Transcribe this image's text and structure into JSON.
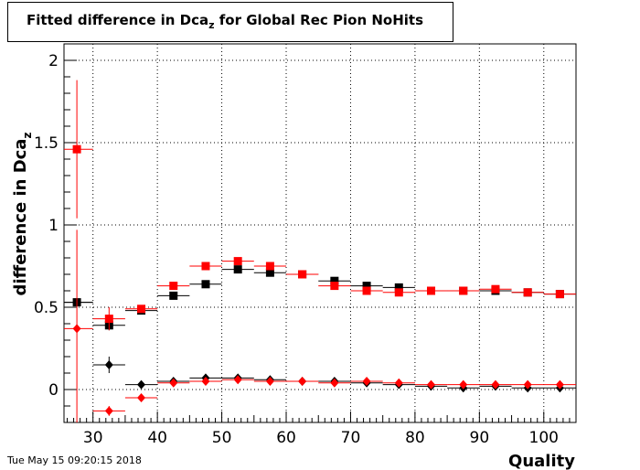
{
  "title": {
    "main": "Fitted difference in Dca",
    "sub": "z",
    "rest": " for Global Rec Pion NoHits"
  },
  "ylabel": {
    "main": "difference in Dca",
    "sub": "z"
  },
  "xlabel": "Quality",
  "timestamp": "Tue May 15 09:20:15 2018",
  "chart_data": {
    "type": "scatter",
    "title": "Fitted difference in Dca_z for Global Rec Pion NoHits",
    "xlabel": "Quality",
    "ylabel": "difference in Dca_z",
    "xlim": [
      25.5,
      105
    ],
    "ylim": [
      -0.2,
      2.1
    ],
    "x_ticks": [
      30,
      40,
      50,
      60,
      70,
      80,
      90,
      100
    ],
    "x_tick_labels": [
      "30",
      "40",
      "50",
      "60",
      "70",
      "80",
      "90",
      "100"
    ],
    "y_ticks": [
      0,
      0.5,
      1,
      1.5,
      2
    ],
    "y_tick_labels": [
      "0",
      "0.5",
      "1",
      "1.5",
      "2"
    ],
    "grid": true,
    "bin_half_width": 2.5,
    "series": [
      {
        "marker": "square",
        "color": "#000000",
        "points": [
          {
            "x": 27.5,
            "y": 0.53,
            "yerr": 0.02
          },
          {
            "x": 32.5,
            "y": 0.39,
            "yerr": 0.03
          },
          {
            "x": 37.5,
            "y": 0.48,
            "yerr": 0.02
          },
          {
            "x": 42.5,
            "y": 0.57,
            "yerr": 0.02
          },
          {
            "x": 47.5,
            "y": 0.64,
            "yerr": 0.02
          },
          {
            "x": 52.5,
            "y": 0.73,
            "yerr": 0.01
          },
          {
            "x": 57.5,
            "y": 0.71,
            "yerr": 0.01
          },
          {
            "x": 62.5,
            "y": 0.7,
            "yerr": 0.01
          },
          {
            "x": 67.5,
            "y": 0.66,
            "yerr": 0.01
          },
          {
            "x": 72.5,
            "y": 0.63,
            "yerr": 0.01
          },
          {
            "x": 77.5,
            "y": 0.62,
            "yerr": 0.01
          },
          {
            "x": 82.5,
            "y": 0.6,
            "yerr": 0.01
          },
          {
            "x": 87.5,
            "y": 0.6,
            "yerr": 0.01
          },
          {
            "x": 92.5,
            "y": 0.6,
            "yerr": 0.01
          },
          {
            "x": 97.5,
            "y": 0.59,
            "yerr": 0.01
          },
          {
            "x": 102.5,
            "y": 0.58,
            "yerr": 0.01
          }
        ]
      },
      {
        "marker": "diamond",
        "color": "#000000",
        "points": [
          {
            "x": 27.5,
            "y": 0.53,
            "yerr": 0.02
          },
          {
            "x": 32.5,
            "y": 0.15,
            "yerr": 0.05
          },
          {
            "x": 37.5,
            "y": 0.03,
            "yerr": 0.02
          },
          {
            "x": 42.5,
            "y": 0.05,
            "yerr": 0.01
          },
          {
            "x": 47.5,
            "y": 0.07,
            "yerr": 0.01
          },
          {
            "x": 52.5,
            "y": 0.07,
            "yerr": 0.01
          },
          {
            "x": 57.5,
            "y": 0.06,
            "yerr": 0.01
          },
          {
            "x": 62.5,
            "y": 0.05,
            "yerr": 0.01
          },
          {
            "x": 67.5,
            "y": 0.05,
            "yerr": 0.01
          },
          {
            "x": 72.5,
            "y": 0.04,
            "yerr": 0.01
          },
          {
            "x": 77.5,
            "y": 0.03,
            "yerr": 0.01
          },
          {
            "x": 82.5,
            "y": 0.02,
            "yerr": 0.01
          },
          {
            "x": 87.5,
            "y": 0.01,
            "yerr": 0.01
          },
          {
            "x": 92.5,
            "y": 0.02,
            "yerr": 0.01
          },
          {
            "x": 97.5,
            "y": 0.01,
            "yerr": 0.01
          },
          {
            "x": 102.5,
            "y": 0.01,
            "yerr": 0.01
          }
        ]
      },
      {
        "marker": "square",
        "color": "#ff0000",
        "points": [
          {
            "x": 27.5,
            "y": 1.46,
            "yerr": 0.42
          },
          {
            "x": 32.5,
            "y": 0.43,
            "yerr": 0.07
          },
          {
            "x": 37.5,
            "y": 0.49,
            "yerr": 0.02
          },
          {
            "x": 42.5,
            "y": 0.63,
            "yerr": 0.02
          },
          {
            "x": 47.5,
            "y": 0.75,
            "yerr": 0.01
          },
          {
            "x": 52.5,
            "y": 0.78,
            "yerr": 0.01
          },
          {
            "x": 57.5,
            "y": 0.75,
            "yerr": 0.01
          },
          {
            "x": 62.5,
            "y": 0.7,
            "yerr": 0.01
          },
          {
            "x": 67.5,
            "y": 0.63,
            "yerr": 0.01
          },
          {
            "x": 72.5,
            "y": 0.6,
            "yerr": 0.01
          },
          {
            "x": 77.5,
            "y": 0.59,
            "yerr": 0.01
          },
          {
            "x": 82.5,
            "y": 0.6,
            "yerr": 0.01
          },
          {
            "x": 87.5,
            "y": 0.6,
            "yerr": 0.01
          },
          {
            "x": 92.5,
            "y": 0.61,
            "yerr": 0.01
          },
          {
            "x": 97.5,
            "y": 0.59,
            "yerr": 0.01
          },
          {
            "x": 102.5,
            "y": 0.58,
            "yerr": 0.01
          }
        ]
      },
      {
        "marker": "diamond",
        "color": "#ff0000",
        "points": [
          {
            "x": 27.5,
            "y": 0.37,
            "yerr": 0.6
          },
          {
            "x": 32.5,
            "y": -0.13,
            "yerr": 0.03
          },
          {
            "x": 37.5,
            "y": -0.05,
            "yerr": 0.02
          },
          {
            "x": 42.5,
            "y": 0.04,
            "yerr": 0.01
          },
          {
            "x": 47.5,
            "y": 0.05,
            "yerr": 0.01
          },
          {
            "x": 52.5,
            "y": 0.06,
            "yerr": 0.01
          },
          {
            "x": 57.5,
            "y": 0.05,
            "yerr": 0.01
          },
          {
            "x": 62.5,
            "y": 0.05,
            "yerr": 0.01
          },
          {
            "x": 67.5,
            "y": 0.04,
            "yerr": 0.01
          },
          {
            "x": 72.5,
            "y": 0.05,
            "yerr": 0.01
          },
          {
            "x": 77.5,
            "y": 0.04,
            "yerr": 0.01
          },
          {
            "x": 82.5,
            "y": 0.03,
            "yerr": 0.01
          },
          {
            "x": 87.5,
            "y": 0.03,
            "yerr": 0.01
          },
          {
            "x": 92.5,
            "y": 0.03,
            "yerr": 0.01
          },
          {
            "x": 97.5,
            "y": 0.03,
            "yerr": 0.01
          },
          {
            "x": 102.5,
            "y": 0.03,
            "yerr": 0.01
          }
        ]
      }
    ]
  }
}
